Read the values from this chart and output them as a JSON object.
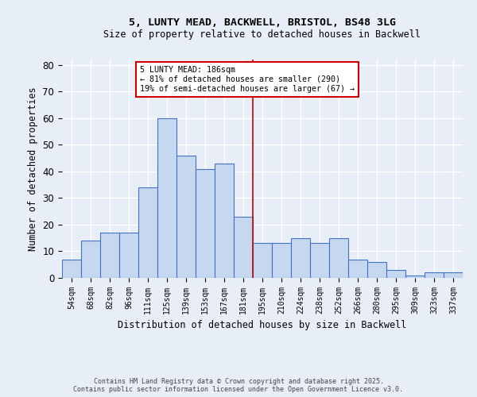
{
  "title1": "5, LUNTY MEAD, BACKWELL, BRISTOL, BS48 3LG",
  "title2": "Size of property relative to detached houses in Backwell",
  "xlabel": "Distribution of detached houses by size in Backwell",
  "ylabel": "Number of detached properties",
  "categories": [
    "54sqm",
    "68sqm",
    "82sqm",
    "96sqm",
    "111sqm",
    "125sqm",
    "139sqm",
    "153sqm",
    "167sqm",
    "181sqm",
    "195sqm",
    "210sqm",
    "224sqm",
    "238sqm",
    "252sqm",
    "266sqm",
    "280sqm",
    "295sqm",
    "309sqm",
    "323sqm",
    "337sqm"
  ],
  "values": [
    7,
    14,
    17,
    17,
    34,
    60,
    46,
    41,
    43,
    23,
    13,
    13,
    15,
    13,
    15,
    7,
    6,
    3,
    1,
    2,
    2
  ],
  "bar_color": "#c5d8f0",
  "bar_edge_color": "#4472c4",
  "vline_x": 9.5,
  "vline_color": "#cc0000",
  "annotation_text": "5 LUNTY MEAD: 186sqm\n← 81% of detached houses are smaller (290)\n19% of semi-detached houses are larger (67) →",
  "annotation_box_color": "#ffffff",
  "annotation_box_edge": "#cc0000",
  "ylim": [
    0,
    82
  ],
  "yticks": [
    0,
    10,
    20,
    30,
    40,
    50,
    60,
    70,
    80
  ],
  "background_color": "#e8eef7",
  "grid_color": "#ffffff",
  "footer1": "Contains HM Land Registry data © Crown copyright and database right 2025.",
  "footer2": "Contains public sector information licensed under the Open Government Licence v3.0."
}
